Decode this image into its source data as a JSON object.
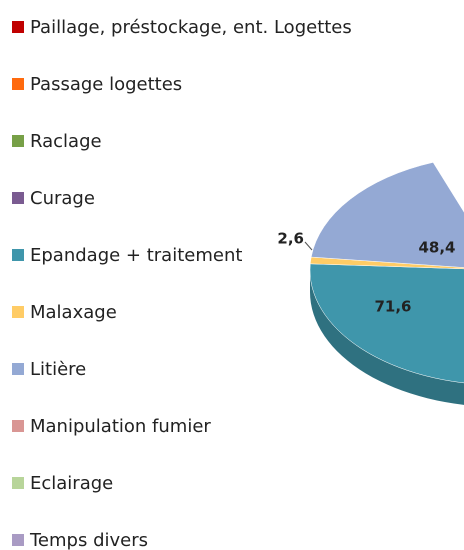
{
  "chart_data": {
    "type": "pie",
    "categories": [
      "Paillage, préstockage, ent. Logettes",
      "Passage logettes",
      "Raclage",
      "Curage",
      "Epandage + traitement",
      "Malaxage",
      "Litière",
      "Manipulation fumier",
      "Eclairage",
      "Temps divers"
    ],
    "values": [
      null,
      null,
      null,
      null,
      71.6,
      2.6,
      48.4,
      null,
      null,
      null
    ],
    "value_labels": [
      null,
      null,
      null,
      null,
      "71,6",
      "2,6",
      "48,4",
      null,
      null,
      null
    ],
    "colors": [
      "#c00000",
      "#ff6a0e",
      "#77a047",
      "#7a5b91",
      "#3f96ab",
      "#ffcc66",
      "#94a9d4",
      "#d99694",
      "#b8d59a",
      "#a99bc4"
    ],
    "legend": "left"
  }
}
